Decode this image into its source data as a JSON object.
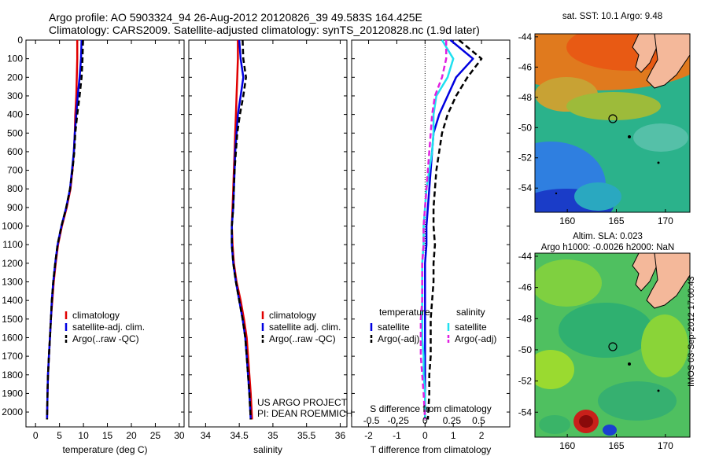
{
  "title_line1": "Argo profile: AO 5903324_94 26-Aug-2012 20120826_39 49.583S 164.425E",
  "title_line2": "Climatology: CARS2009. Satellite-adjusted climatology: synTS_20120828.nc (1.9d later)",
  "colors": {
    "climatology": "#e00000",
    "satellite": "#0000e0",
    "argo": "#000000",
    "salinity_satellite": "#20e0f0",
    "salinity_argo": "#e020e0",
    "land": "#f4b89a"
  },
  "chart_data": [
    {
      "type": "line",
      "xlabel": "temperature (deg C)",
      "ylabel": "",
      "xlim": [
        -2,
        31
      ],
      "ylim": [
        2080,
        0
      ],
      "xticks": [
        0,
        5,
        10,
        15,
        20,
        25,
        30
      ],
      "yticks": [
        0,
        100,
        200,
        300,
        400,
        500,
        600,
        700,
        800,
        900,
        1000,
        1100,
        1200,
        1300,
        1400,
        1500,
        1600,
        1700,
        1800,
        1900,
        2000
      ],
      "legend_location": "center",
      "series": [
        {
          "name": "climatology",
          "color": "#e00000",
          "style": "solid",
          "x": [
            8.7,
            8.7,
            8.6,
            8.5,
            8.3,
            8.2,
            8.0,
            7.7,
            7.3,
            6.5,
            5.5,
            4.7,
            4.2,
            3.8,
            3.5,
            3.2,
            3.0,
            2.8,
            2.6,
            2.5,
            2.4
          ],
          "y": [
            0,
            100,
            200,
            300,
            400,
            500,
            600,
            700,
            800,
            900,
            1000,
            1100,
            1200,
            1300,
            1400,
            1500,
            1600,
            1700,
            1800,
            1900,
            2040
          ]
        },
        {
          "name": "satellite-adj. clim.",
          "color": "#0000e0",
          "style": "solid",
          "x": [
            9.6,
            9.5,
            9.2,
            8.8,
            8.5,
            8.2,
            8.0,
            7.6,
            7.2,
            6.4,
            5.4,
            4.6,
            4.1,
            3.7,
            3.4,
            3.2,
            3.0,
            2.8,
            2.6,
            2.5,
            2.4
          ],
          "y": [
            0,
            100,
            200,
            300,
            400,
            500,
            600,
            700,
            800,
            900,
            1000,
            1100,
            1200,
            1300,
            1400,
            1500,
            1600,
            1700,
            1800,
            1900,
            2040
          ]
        },
        {
          "name": "Argo(..raw -QC)",
          "color": "#000000",
          "style": "dashed",
          "x": [
            9.9,
            9.8,
            9.6,
            9.2,
            8.7,
            8.3,
            8.1,
            7.7,
            7.2,
            6.4,
            5.4,
            4.6,
            4.1,
            3.7,
            3.4,
            3.2,
            3.0,
            2.8,
            2.6,
            2.5,
            2.4
          ],
          "y": [
            0,
            100,
            200,
            300,
            400,
            500,
            600,
            700,
            800,
            900,
            1000,
            1100,
            1200,
            1300,
            1400,
            1500,
            1600,
            1700,
            1800,
            1900,
            2040
          ]
        }
      ]
    },
    {
      "type": "line",
      "xlabel": "salinity",
      "xlim": [
        33.75,
        36.1
      ],
      "ylim": [
        2080,
        0
      ],
      "xticks": [
        34,
        34.5,
        35,
        35.5,
        36
      ],
      "legend_location": "center-right",
      "annotation": [
        "US ARGO PROJECT",
        "PI: DEAN ROEMMICH"
      ],
      "series": [
        {
          "name": "climatology",
          "color": "#e00000",
          "style": "solid",
          "x": [
            34.48,
            34.48,
            34.47,
            34.46,
            34.45,
            34.44,
            34.43,
            34.42,
            34.41,
            34.4,
            34.39,
            34.4,
            34.42,
            34.46,
            34.52,
            34.57,
            34.61,
            34.63,
            34.65,
            34.67,
            34.69
          ],
          "y": [
            0,
            100,
            200,
            300,
            400,
            500,
            600,
            700,
            800,
            900,
            1000,
            1100,
            1200,
            1300,
            1400,
            1500,
            1600,
            1700,
            1800,
            1900,
            2040
          ]
        },
        {
          "name": "satellite adj. clim.",
          "color": "#0000e0",
          "style": "solid",
          "x": [
            34.5,
            34.52,
            34.56,
            34.52,
            34.48,
            34.46,
            34.44,
            34.43,
            34.42,
            34.41,
            34.39,
            34.39,
            34.41,
            34.45,
            34.5,
            34.55,
            34.59,
            34.61,
            34.63,
            34.65,
            34.67
          ],
          "y": [
            0,
            100,
            200,
            300,
            400,
            500,
            600,
            700,
            800,
            900,
            1000,
            1100,
            1200,
            1300,
            1400,
            1500,
            1600,
            1700,
            1800,
            1900,
            2040
          ]
        },
        {
          "name": "Argo(..raw -QC)",
          "color": "#000000",
          "style": "dashed",
          "x": [
            34.55,
            34.56,
            34.6,
            34.56,
            34.51,
            34.47,
            34.45,
            34.43,
            34.42,
            34.41,
            34.39,
            34.39,
            34.41,
            34.45,
            34.5,
            34.55,
            34.59,
            34.61,
            34.63,
            34.65,
            34.67
          ],
          "y": [
            0,
            100,
            200,
            300,
            400,
            500,
            600,
            700,
            800,
            900,
            1000,
            1100,
            1200,
            1300,
            1400,
            1500,
            1600,
            1700,
            1800,
            1900,
            2040
          ]
        }
      ]
    },
    {
      "type": "line",
      "xlabel": "T difference from climatology",
      "x2label": "S difference from climatology",
      "xlim": [
        -2.6,
        3.0
      ],
      "ylim": [
        2080,
        0
      ],
      "xticks": [
        -2,
        -1,
        0,
        1,
        2
      ],
      "x2ticks": [
        {
          "value": -1.9,
          "label": "-0.5"
        },
        {
          "value": -0.95,
          "label": "-0.25"
        },
        {
          "value": 0.0,
          "label": "0"
        },
        {
          "value": 0.95,
          "label": "0.25"
        },
        {
          "value": 1.9,
          "label": "0.5"
        }
      ],
      "zero_line": "dotted",
      "legend_location": "center",
      "legend_groups": [
        "temperature",
        "salinity"
      ],
      "series": [
        {
          "name": "satellite",
          "group": "temperature",
          "color": "#0000e0",
          "style": "solid",
          "x": [
            0.9,
            1.7,
            1.1,
            0.8,
            0.5,
            0.3,
            0.25,
            0.2,
            0.15,
            0.1,
            0.05,
            0.05,
            0.0,
            0.0,
            0.0,
            0.0,
            0.0,
            0.0,
            0.0,
            0.0,
            0.0
          ],
          "y": [
            0,
            100,
            200,
            300,
            400,
            500,
            600,
            700,
            800,
            900,
            1000,
            1100,
            1200,
            1300,
            1400,
            1500,
            1600,
            1700,
            1800,
            1900,
            2040
          ]
        },
        {
          "name": "Argo(-adj)",
          "group": "temperature",
          "color": "#000000",
          "style": "dashed",
          "x": [
            1.2,
            2.0,
            1.5,
            1.1,
            0.8,
            0.6,
            0.5,
            0.4,
            0.35,
            0.3,
            0.3,
            0.35,
            0.3,
            0.3,
            0.25,
            0.2,
            0.2,
            0.2,
            0.15,
            0.15,
            0.1
          ],
          "y": [
            0,
            100,
            200,
            300,
            400,
            500,
            600,
            700,
            800,
            900,
            1000,
            1100,
            1200,
            1300,
            1400,
            1500,
            1600,
            1700,
            1800,
            1900,
            2040
          ]
        },
        {
          "name": "satellite",
          "group": "salinity",
          "color": "#20e0f0",
          "style": "solid",
          "x": [
            0.6,
            1.0,
            0.8,
            0.4,
            0.3,
            0.3,
            0.25,
            0.15,
            0.05,
            0.0,
            -0.05,
            -0.05,
            -0.1,
            -0.1,
            -0.1,
            -0.1,
            -0.1,
            -0.05,
            -0.05,
            0.0,
            0.0
          ],
          "y": [
            0,
            100,
            200,
            300,
            400,
            500,
            600,
            700,
            800,
            900,
            1000,
            1100,
            1200,
            1300,
            1400,
            1500,
            1600,
            1700,
            1800,
            1900,
            2040
          ]
        },
        {
          "name": "Argo(-adj)",
          "group": "salinity",
          "color": "#e020e0",
          "style": "dashed",
          "x": [
            0.75,
            0.75,
            0.6,
            0.35,
            0.25,
            0.2,
            0.15,
            0.1,
            0.05,
            0.0,
            -0.05,
            -0.05,
            -0.1,
            -0.1,
            -0.1,
            -0.15,
            -0.15,
            -0.15,
            -0.1,
            -0.05,
            0.0
          ],
          "y": [
            0,
            100,
            200,
            300,
            400,
            500,
            600,
            700,
            800,
            900,
            1000,
            1100,
            1200,
            1300,
            1400,
            1500,
            1600,
            1700,
            1800,
            1900,
            2040
          ]
        }
      ]
    },
    {
      "type": "heatmap",
      "title": "sat. SST: 10.1  Argo: 9.48",
      "xlim": [
        156.7,
        172.5
      ],
      "ylim": [
        -55.6,
        -43.8
      ],
      "xticks": [
        160,
        165,
        170
      ],
      "yticks": [
        -44,
        -46,
        -48,
        -50,
        -52,
        -54
      ],
      "marker": {
        "lon": 164.425,
        "lat": -49.583
      }
    },
    {
      "type": "heatmap",
      "title": [
        "Altim. SLA: 0.023",
        "Argo h1000: -0.0026 h2000: NaN"
      ],
      "xlim": [
        156.7,
        172.5
      ],
      "ylim": [
        -55.6,
        -43.8
      ],
      "xticks": [
        160,
        165,
        170
      ],
      "yticks": [
        -44,
        -46,
        -48,
        -50,
        -52,
        -54
      ],
      "marker": {
        "lon": 164.425,
        "lat": -49.583
      }
    }
  ],
  "stamp": "IMOS 03-Sep-2012 17:00:43"
}
